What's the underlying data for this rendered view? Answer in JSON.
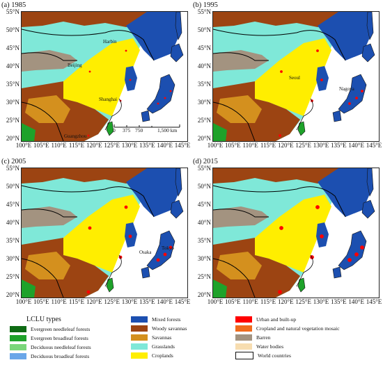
{
  "panels": [
    {
      "label": "(a) 1985",
      "cities": [
        "Harbin",
        "Beijing",
        "Shanghai",
        "Guangzhou"
      ]
    },
    {
      "label": "(b) 1995",
      "cities": [
        "Seoul",
        "Nagoya"
      ]
    },
    {
      "label": "(c) 2005",
      "cities": [
        "Osaka",
        "Tokyo"
      ]
    },
    {
      "label": "(d) 2015",
      "cities": []
    }
  ],
  "lat_labels": [
    "55°N",
    "50°N",
    "45°N",
    "40°N",
    "35°N",
    "30°N",
    "25°N",
    "20°N"
  ],
  "lon_labels": [
    "100°E",
    "105°E",
    "110°E",
    "115°E",
    "120°E",
    "125°E",
    "130°E",
    "135°E",
    "140°E",
    "145°E"
  ],
  "scalebar": {
    "ticks": [
      "0",
      "375",
      "750",
      "1,500 km"
    ]
  },
  "legend": {
    "title": "LCLU types",
    "items": [
      {
        "label": "Evergreen needleleaf forests",
        "color": "#0f6b14"
      },
      {
        "label": "Evergreen broadleaf forests",
        "color": "#1ea22a"
      },
      {
        "label": "Deciduous needleleaf forests",
        "color": "#7ad67a"
      },
      {
        "label": "Deciduous broadleaf forests",
        "color": "#6aa6e8"
      },
      {
        "label": "Mixed forests",
        "color": "#1c4fb0"
      },
      {
        "label": "Woody savannas",
        "color": "#9c4412"
      },
      {
        "label": "Savannas",
        "color": "#d4901e"
      },
      {
        "label": "Grasslands",
        "color": "#7fe8d8"
      },
      {
        "label": "Croplands",
        "color": "#ffee00"
      },
      {
        "label": "Urban and built-up",
        "color": "#ff0000"
      },
      {
        "label": "Cropland and natural vegetation mosaic",
        "color": "#f06a1c"
      },
      {
        "label": "Barren",
        "color": "#a39380"
      },
      {
        "label": "Water bodies",
        "color": "#f7ddb0"
      },
      {
        "label": "World countries",
        "color": "#ffffff"
      }
    ]
  }
}
